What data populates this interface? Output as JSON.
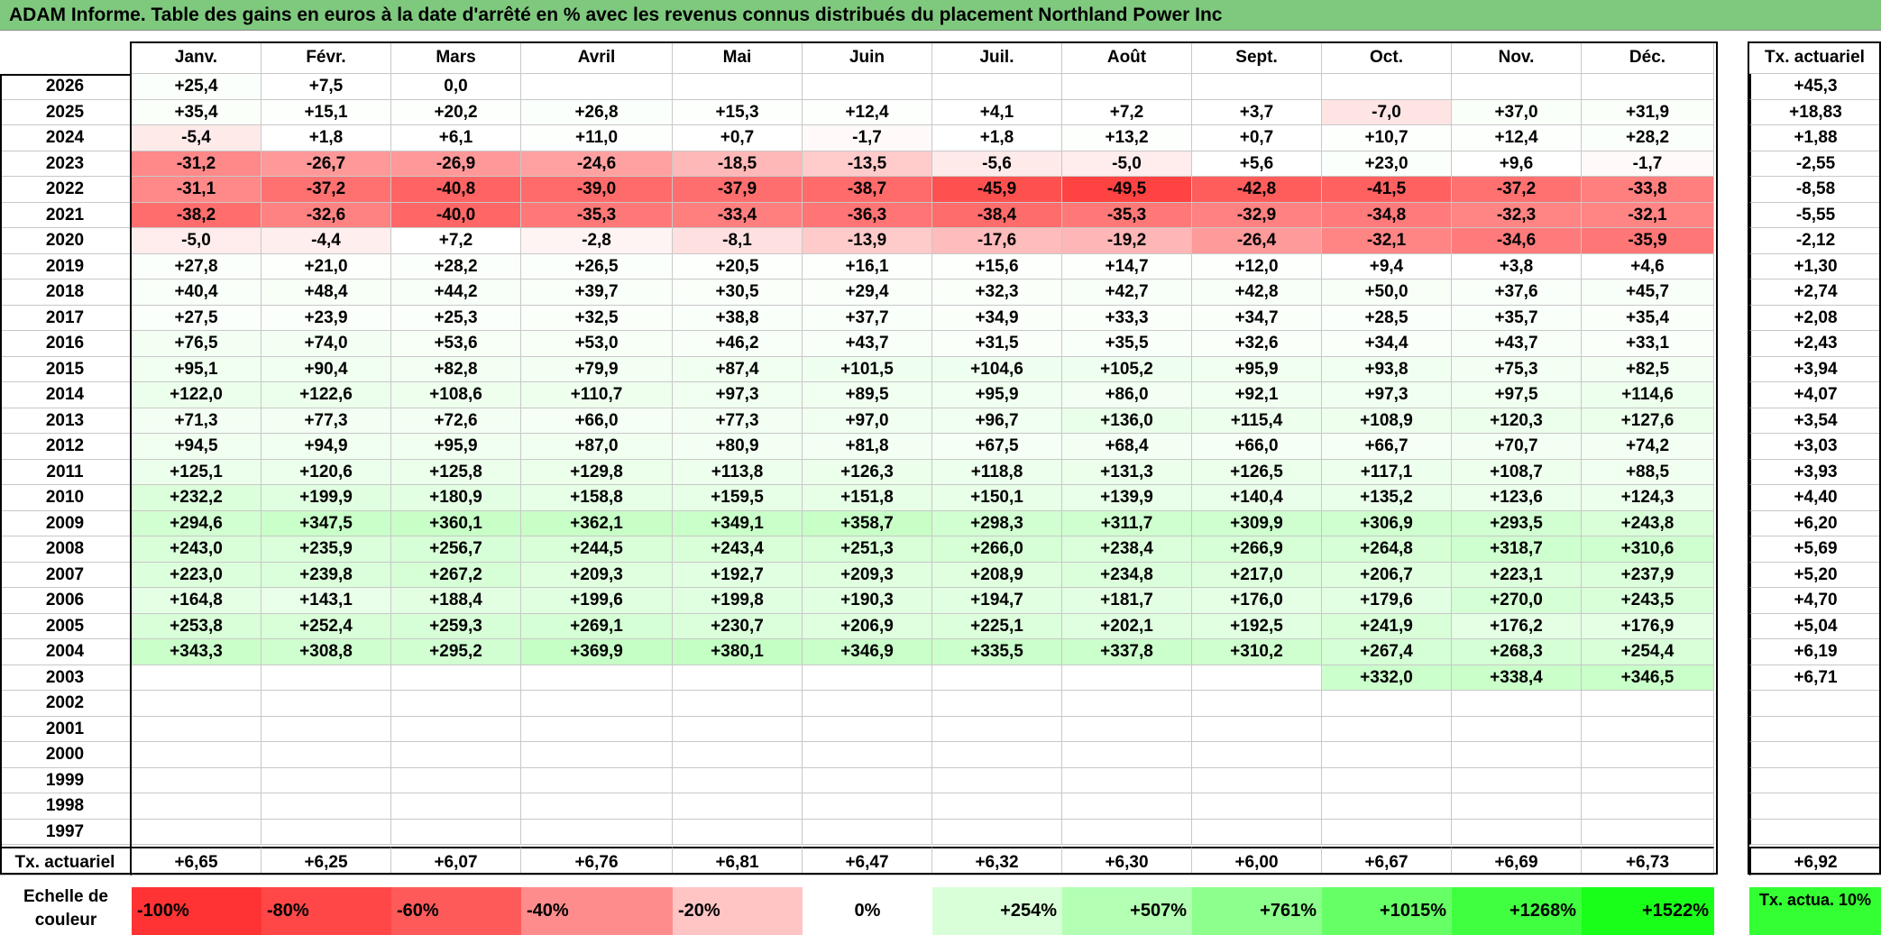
{
  "title": "ADAM Informe. Table des gains en euros à la date d'arrêté en % avec les revenus connus distribués du placement Northland Power Inc",
  "months": [
    "Janv.",
    "Févr.",
    "Mars",
    "Avril",
    "Mai",
    "Juin",
    "Juil.",
    "Août",
    "Sept.",
    "Oct.",
    "Nov.",
    "Déc."
  ],
  "tx_header": "Tx. actuariel",
  "rows": [
    {
      "year": "2026",
      "values": [
        "+25,4",
        "+7,5",
        "0,0",
        "",
        "",
        "",
        "",
        "",
        "",
        "",
        "",
        ""
      ],
      "tx": "+45,3"
    },
    {
      "year": "2025",
      "values": [
        "+35,4",
        "+15,1",
        "+20,2",
        "+26,8",
        "+15,3",
        "+12,4",
        "+4,1",
        "+7,2",
        "+3,7",
        "-7,0",
        "+37,0",
        "+31,9"
      ],
      "tx": "+18,83"
    },
    {
      "year": "2024",
      "values": [
        "-5,4",
        "+1,8",
        "+6,1",
        "+11,0",
        "+0,7",
        "-1,7",
        "+1,8",
        "+13,2",
        "+0,7",
        "+10,7",
        "+12,4",
        "+28,2"
      ],
      "tx": "+1,88"
    },
    {
      "year": "2023",
      "values": [
        "-31,2",
        "-26,7",
        "-26,9",
        "-24,6",
        "-18,5",
        "-13,5",
        "-5,6",
        "-5,0",
        "+5,6",
        "+23,0",
        "+9,6",
        "-1,7"
      ],
      "tx": "-2,55"
    },
    {
      "year": "2022",
      "values": [
        "-31,1",
        "-37,2",
        "-40,8",
        "-39,0",
        "-37,9",
        "-38,7",
        "-45,9",
        "-49,5",
        "-42,8",
        "-41,5",
        "-37,2",
        "-33,8"
      ],
      "tx": "-8,58"
    },
    {
      "year": "2021",
      "values": [
        "-38,2",
        "-32,6",
        "-40,0",
        "-35,3",
        "-33,4",
        "-36,3",
        "-38,4",
        "-35,3",
        "-32,9",
        "-34,8",
        "-32,3",
        "-32,1"
      ],
      "tx": "-5,55"
    },
    {
      "year": "2020",
      "values": [
        "-5,0",
        "-4,4",
        "+7,2",
        "-2,8",
        "-8,1",
        "-13,9",
        "-17,6",
        "-19,2",
        "-26,4",
        "-32,1",
        "-34,6",
        "-35,9"
      ],
      "tx": "-2,12"
    },
    {
      "year": "2019",
      "values": [
        "+27,8",
        "+21,0",
        "+28,2",
        "+26,5",
        "+20,5",
        "+16,1",
        "+15,6",
        "+14,7",
        "+12,0",
        "+9,4",
        "+3,8",
        "+4,6"
      ],
      "tx": "+1,30"
    },
    {
      "year": "2018",
      "values": [
        "+40,4",
        "+48,4",
        "+44,2",
        "+39,7",
        "+30,5",
        "+29,4",
        "+32,3",
        "+42,7",
        "+42,8",
        "+50,0",
        "+37,6",
        "+45,7"
      ],
      "tx": "+2,74"
    },
    {
      "year": "2017",
      "values": [
        "+27,5",
        "+23,9",
        "+25,3",
        "+32,5",
        "+38,8",
        "+37,7",
        "+34,9",
        "+33,3",
        "+34,7",
        "+28,5",
        "+35,7",
        "+35,4"
      ],
      "tx": "+2,08"
    },
    {
      "year": "2016",
      "values": [
        "+76,5",
        "+74,0",
        "+53,6",
        "+53,0",
        "+46,2",
        "+43,7",
        "+31,5",
        "+35,5",
        "+32,6",
        "+34,4",
        "+43,7",
        "+33,1"
      ],
      "tx": "+2,43"
    },
    {
      "year": "2015",
      "values": [
        "+95,1",
        "+90,4",
        "+82,8",
        "+79,9",
        "+87,4",
        "+101,5",
        "+104,6",
        "+105,2",
        "+95,9",
        "+93,8",
        "+75,3",
        "+82,5"
      ],
      "tx": "+3,94"
    },
    {
      "year": "2014",
      "values": [
        "+122,0",
        "+122,6",
        "+108,6",
        "+110,7",
        "+97,3",
        "+89,5",
        "+95,9",
        "+86,0",
        "+92,1",
        "+97,3",
        "+97,5",
        "+114,6"
      ],
      "tx": "+4,07"
    },
    {
      "year": "2013",
      "values": [
        "+71,3",
        "+77,3",
        "+72,6",
        "+66,0",
        "+77,3",
        "+97,0",
        "+96,7",
        "+136,0",
        "+115,4",
        "+108,9",
        "+120,3",
        "+127,6"
      ],
      "tx": "+3,54"
    },
    {
      "year": "2012",
      "values": [
        "+94,5",
        "+94,9",
        "+95,9",
        "+87,0",
        "+80,9",
        "+81,8",
        "+67,5",
        "+68,4",
        "+66,0",
        "+66,7",
        "+70,7",
        "+74,2"
      ],
      "tx": "+3,03"
    },
    {
      "year": "2011",
      "values": [
        "+125,1",
        "+120,6",
        "+125,8",
        "+129,8",
        "+113,8",
        "+126,3",
        "+118,8",
        "+131,3",
        "+126,5",
        "+117,1",
        "+108,7",
        "+88,5"
      ],
      "tx": "+3,93"
    },
    {
      "year": "2010",
      "values": [
        "+232,2",
        "+199,9",
        "+180,9",
        "+158,8",
        "+159,5",
        "+151,8",
        "+150,1",
        "+139,9",
        "+140,4",
        "+135,2",
        "+123,6",
        "+124,3"
      ],
      "tx": "+4,40"
    },
    {
      "year": "2009",
      "values": [
        "+294,6",
        "+347,5",
        "+360,1",
        "+362,1",
        "+349,1",
        "+358,7",
        "+298,3",
        "+311,7",
        "+309,9",
        "+306,9",
        "+293,5",
        "+243,8"
      ],
      "tx": "+6,20"
    },
    {
      "year": "2008",
      "values": [
        "+243,0",
        "+235,9",
        "+256,7",
        "+244,5",
        "+243,4",
        "+251,3",
        "+266,0",
        "+238,4",
        "+266,9",
        "+264,8",
        "+318,7",
        "+310,6"
      ],
      "tx": "+5,69"
    },
    {
      "year": "2007",
      "values": [
        "+223,0",
        "+239,8",
        "+267,2",
        "+209,3",
        "+192,7",
        "+209,3",
        "+208,9",
        "+234,8",
        "+217,0",
        "+206,7",
        "+223,1",
        "+237,9"
      ],
      "tx": "+5,20"
    },
    {
      "year": "2006",
      "values": [
        "+164,8",
        "+143,1",
        "+188,4",
        "+199,6",
        "+199,8",
        "+190,3",
        "+194,7",
        "+181,7",
        "+176,0",
        "+179,6",
        "+270,0",
        "+243,5"
      ],
      "tx": "+4,70"
    },
    {
      "year": "2005",
      "values": [
        "+253,8",
        "+252,4",
        "+259,3",
        "+269,1",
        "+230,7",
        "+206,9",
        "+225,1",
        "+202,1",
        "+192,5",
        "+241,9",
        "+176,2",
        "+176,9"
      ],
      "tx": "+5,04"
    },
    {
      "year": "2004",
      "values": [
        "+343,3",
        "+308,8",
        "+295,2",
        "+369,9",
        "+380,1",
        "+346,9",
        "+335,5",
        "+337,8",
        "+310,2",
        "+267,4",
        "+268,3",
        "+254,4"
      ],
      "tx": "+6,19"
    },
    {
      "year": "2003",
      "values": [
        "",
        "",
        "",
        "",
        "",
        "",
        "",
        "",
        "",
        "+332,0",
        "+338,4",
        "+346,5"
      ],
      "tx": "+6,71"
    },
    {
      "year": "2002",
      "values": [
        "",
        "",
        "",
        "",
        "",
        "",
        "",
        "",
        "",
        "",
        "",
        ""
      ],
      "tx": ""
    },
    {
      "year": "2001",
      "values": [
        "",
        "",
        "",
        "",
        "",
        "",
        "",
        "",
        "",
        "",
        "",
        ""
      ],
      "tx": ""
    },
    {
      "year": "2000",
      "values": [
        "",
        "",
        "",
        "",
        "",
        "",
        "",
        "",
        "",
        "",
        "",
        ""
      ],
      "tx": ""
    },
    {
      "year": "1999",
      "values": [
        "",
        "",
        "",
        "",
        "",
        "",
        "",
        "",
        "",
        "",
        "",
        ""
      ],
      "tx": ""
    },
    {
      "year": "1998",
      "values": [
        "",
        "",
        "",
        "",
        "",
        "",
        "",
        "",
        "",
        "",
        "",
        ""
      ],
      "tx": ""
    },
    {
      "year": "1997",
      "values": [
        "",
        "",
        "",
        "",
        "",
        "",
        "",
        "",
        "",
        "",
        "",
        ""
      ],
      "tx": ""
    }
  ],
  "footer": {
    "label": "Tx. actuariel",
    "values": [
      "+6,65",
      "+6,25",
      "+6,07",
      "+6,76",
      "+6,81",
      "+6,47",
      "+6,32",
      "+6,30",
      "+6,00",
      "+6,67",
      "+6,69",
      "+6,73"
    ],
    "tx": "+6,92"
  },
  "scale": {
    "label": "Echelle de couleur",
    "items": [
      {
        "text": "-100%",
        "color": "#ff3333"
      },
      {
        "text": "-80%",
        "color": "#ff4747"
      },
      {
        "text": "-60%",
        "color": "#ff5a5a"
      },
      {
        "text": "-40%",
        "color": "#ff8c8c"
      },
      {
        "text": "-20%",
        "color": "#ffc4c4"
      },
      {
        "text": "0%",
        "color": "#ffffff"
      },
      {
        "text": "+254%",
        "color": "#d9ffd9"
      },
      {
        "text": "+507%",
        "color": "#b3ffb3"
      },
      {
        "text": "+761%",
        "color": "#8cff8c"
      },
      {
        "text": "+1015%",
        "color": "#66ff66"
      },
      {
        "text": "+1268%",
        "color": "#40ff40"
      },
      {
        "text": "+1522%",
        "color": "#1aff1a"
      }
    ],
    "tx_label": "Tx. actua. 10%",
    "tx_color": "#33ff33"
  }
}
